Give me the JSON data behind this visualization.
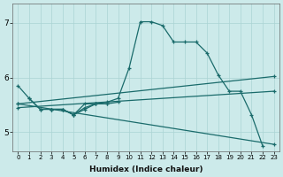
{
  "xlabel": "Humidex (Indice chaleur)",
  "xlim": [
    -0.5,
    23.5
  ],
  "ylim": [
    4.65,
    7.35
  ],
  "yticks": [
    5,
    6,
    7
  ],
  "xticks": [
    0,
    1,
    2,
    3,
    4,
    5,
    6,
    7,
    8,
    9,
    10,
    11,
    12,
    13,
    14,
    15,
    16,
    17,
    18,
    19,
    20,
    21,
    22,
    23
  ],
  "bg_color": "#cceaea",
  "line_color": "#1a6b6b",
  "grid_color": "#aad4d4",
  "line1_x": [
    0,
    1,
    2,
    3,
    4,
    5,
    6,
    7,
    8,
    9,
    10,
    11,
    12,
    13,
    14,
    15,
    16,
    17,
    18,
    19,
    20,
    21,
    22
  ],
  "line1_y": [
    5.85,
    5.62,
    5.42,
    5.42,
    5.42,
    5.32,
    5.52,
    5.52,
    5.55,
    5.62,
    6.18,
    7.02,
    7.02,
    6.95,
    6.65,
    6.65,
    6.65,
    6.45,
    6.05,
    5.75,
    5.75,
    5.32,
    4.75
  ],
  "line2_x": [
    0,
    23
  ],
  "line2_y": [
    5.52,
    6.02
  ],
  "line3_x": [
    0,
    23
  ],
  "line3_y": [
    5.45,
    5.75
  ],
  "line4_x": [
    0,
    23
  ],
  "line4_y": [
    5.52,
    4.78
  ],
  "clust1_x": [
    1,
    2,
    3,
    4,
    5,
    6,
    7,
    8,
    9
  ],
  "clust1_y": [
    5.62,
    5.42,
    5.42,
    5.42,
    5.32,
    5.45,
    5.52,
    5.52,
    5.55
  ],
  "clust2_x": [
    3,
    4,
    5,
    6,
    7,
    8
  ],
  "clust2_y": [
    5.42,
    5.42,
    5.32,
    5.42,
    5.52,
    5.52
  ]
}
